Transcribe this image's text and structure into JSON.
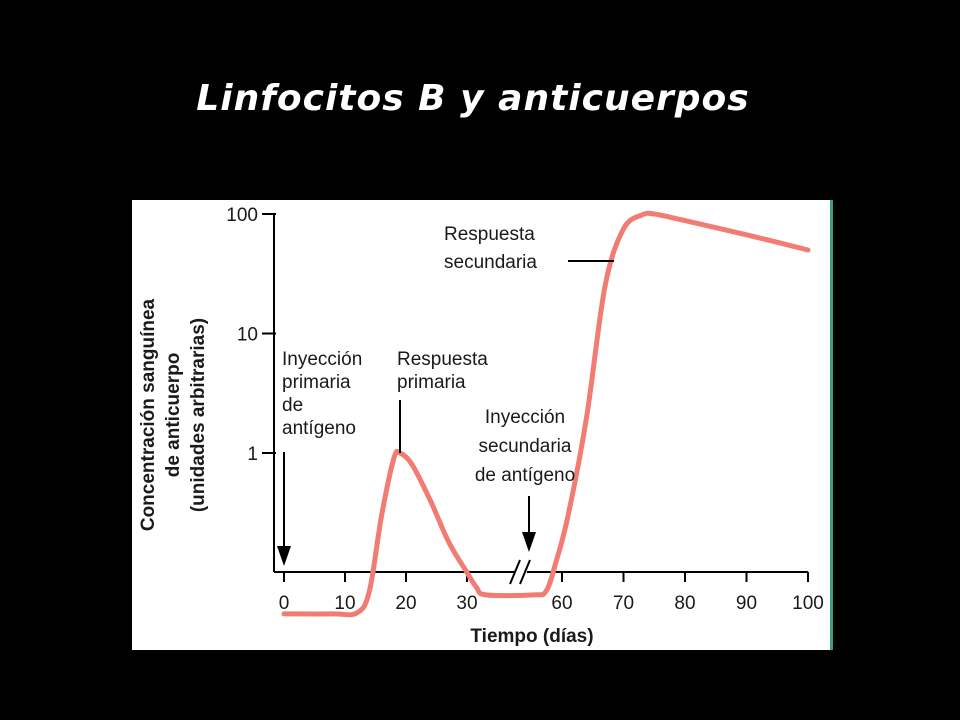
{
  "slide": {
    "title": "Linfocitos B y anticuerpos",
    "background": "#000000"
  },
  "chart_data": {
    "type": "line",
    "title": "",
    "xlabel": "Tiempo (días)",
    "ylabel_lines": [
      "Concentración sanguínea",
      "de anticuerpo",
      "(unidades arbitrarias)"
    ],
    "y_scale": "log",
    "y_ticks": [
      {
        "value": 1,
        "label": "1"
      },
      {
        "value": 10,
        "label": "10"
      },
      {
        "value": 100,
        "label": "100"
      }
    ],
    "x_ticks": [
      0,
      10,
      20,
      30,
      60,
      70,
      80,
      90,
      100
    ],
    "x_axis_break": "between 30 and 60",
    "grid": false,
    "series": [
      {
        "color": "#f07c73",
        "points": [
          {
            "x": 0,
            "y": 0.045
          },
          {
            "x": 8,
            "y": 0.045
          },
          {
            "x": 12,
            "y": 0.046
          },
          {
            "x": 14,
            "y": 0.07
          },
          {
            "x": 16,
            "y": 0.3
          },
          {
            "x": 18,
            "y": 0.9
          },
          {
            "x": 19,
            "y": 1.0
          },
          {
            "x": 21,
            "y": 0.8
          },
          {
            "x": 24,
            "y": 0.4
          },
          {
            "x": 27,
            "y": 0.18
          },
          {
            "x": 30,
            "y": 0.1
          },
          {
            "x": 33,
            "y": 0.075
          },
          {
            "x": 36,
            "y": 0.065
          },
          {
            "x": 51,
            "y": 0.065
          },
          {
            "x": 55,
            "y": 0.07
          },
          {
            "x": 58,
            "y": 0.12
          },
          {
            "x": 61,
            "y": 0.3
          },
          {
            "x": 64,
            "y": 2
          },
          {
            "x": 67,
            "y": 25
          },
          {
            "x": 70,
            "y": 75
          },
          {
            "x": 73,
            "y": 98
          },
          {
            "x": 75,
            "y": 100
          },
          {
            "x": 80,
            "y": 88
          },
          {
            "x": 90,
            "y": 67
          },
          {
            "x": 100,
            "y": 50
          }
        ]
      }
    ],
    "annotations": [
      {
        "key": "primary_injection",
        "lines": [
          "Inyección",
          "primaria",
          "de",
          "antígeno"
        ]
      },
      {
        "key": "primary_response",
        "lines": [
          "Respuesta",
          "primaria"
        ]
      },
      {
        "key": "secondary_injection",
        "lines": [
          "Inyección",
          "secundaria",
          "de antígeno"
        ]
      },
      {
        "key": "secondary_response",
        "lines": [
          "Respuesta",
          "secundaria"
        ]
      }
    ]
  }
}
